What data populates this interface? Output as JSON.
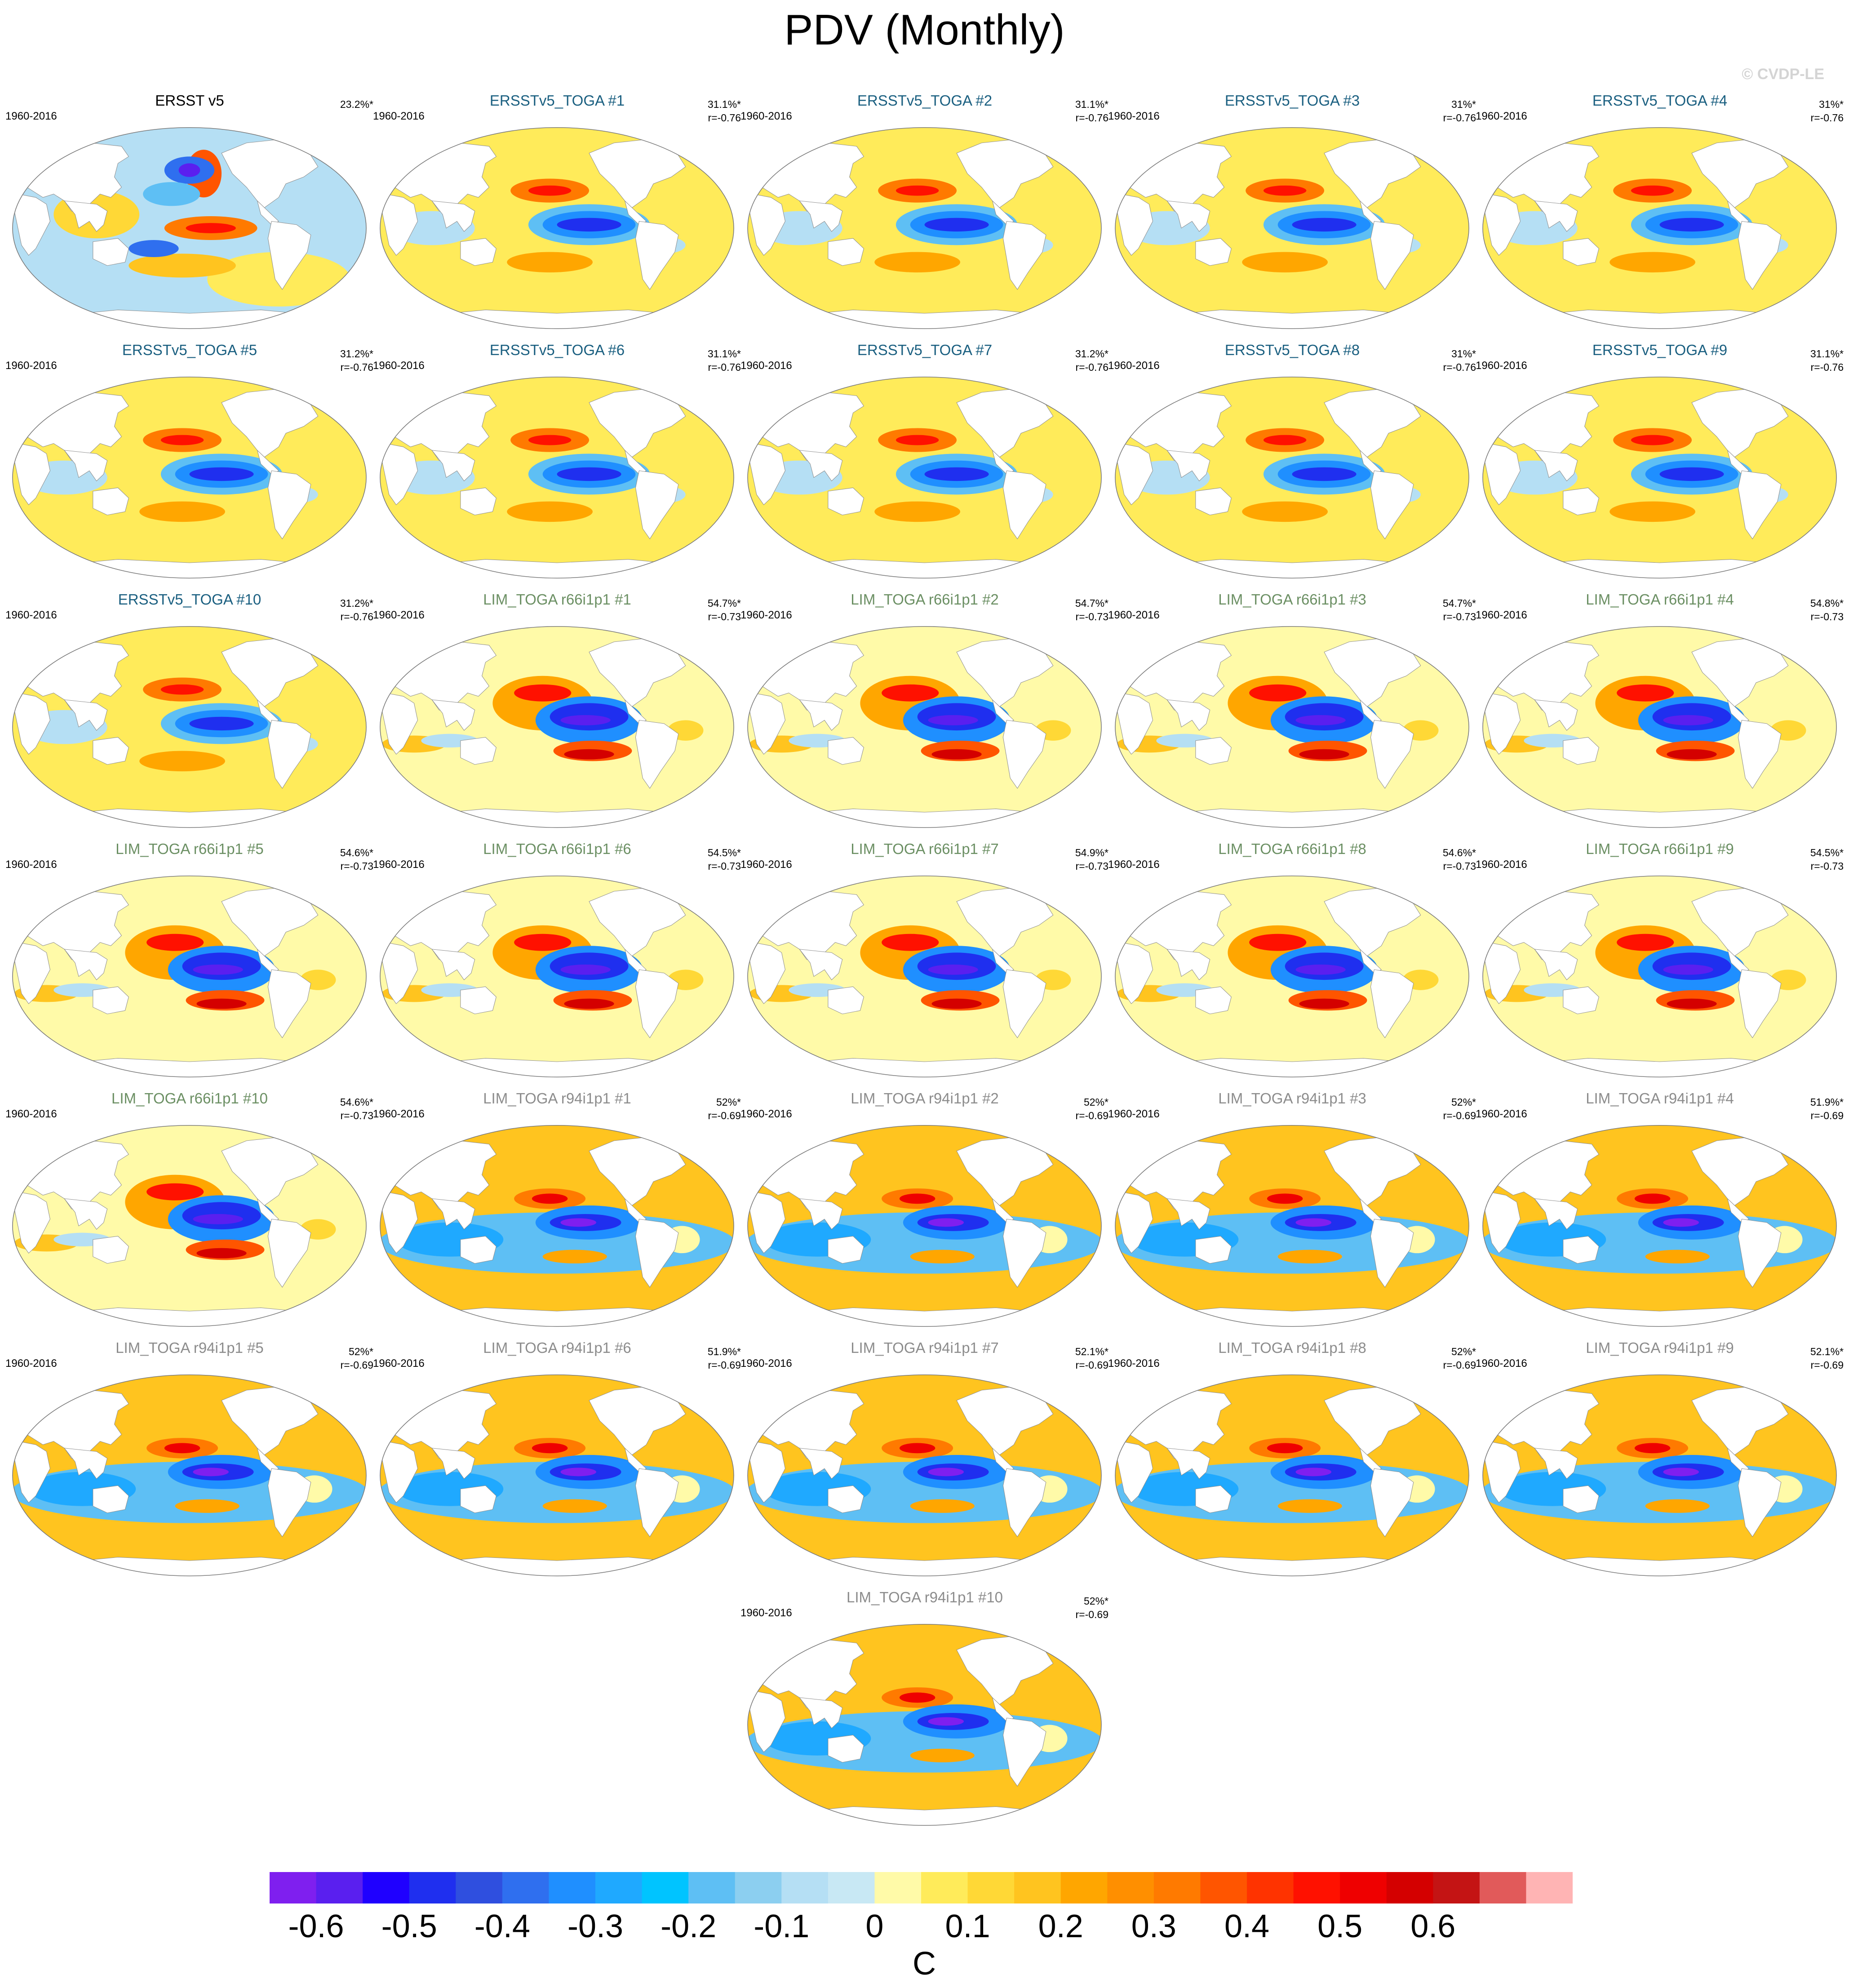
{
  "title": "PDV (Monthly)",
  "copyright": "© CVDP-LE",
  "units": "C",
  "panels": [
    {
      "title": "ERSST v5",
      "period": "1960-2016",
      "variance": "23.2%*",
      "corr": "",
      "style": "obs",
      "title_color": "#000000"
    },
    {
      "title": "ERSSTv5_TOGA #1",
      "period": "1960-2016",
      "variance": "31.1%*",
      "corr": "r=-0.76",
      "style": "ersst",
      "title_color": "#1a5f80"
    },
    {
      "title": "ERSSTv5_TOGA #2",
      "period": "1960-2016",
      "variance": "31.1%*",
      "corr": "r=-0.76",
      "style": "ersst",
      "title_color": "#1a5f80"
    },
    {
      "title": "ERSSTv5_TOGA #3",
      "period": "1960-2016",
      "variance": "31%*",
      "corr": "r=-0.76",
      "style": "ersst",
      "title_color": "#1a5f80"
    },
    {
      "title": "ERSSTv5_TOGA #4",
      "period": "1960-2016",
      "variance": "31%*",
      "corr": "r=-0.76",
      "style": "ersst",
      "title_color": "#1a5f80"
    },
    {
      "title": "ERSSTv5_TOGA #5",
      "period": "1960-2016",
      "variance": "31.2%*",
      "corr": "r=-0.76",
      "style": "ersst",
      "title_color": "#1a5f80"
    },
    {
      "title": "ERSSTv5_TOGA #6",
      "period": "1960-2016",
      "variance": "31.1%*",
      "corr": "r=-0.76",
      "style": "ersst",
      "title_color": "#1a5f80"
    },
    {
      "title": "ERSSTv5_TOGA #7",
      "period": "1960-2016",
      "variance": "31.2%*",
      "corr": "r=-0.76",
      "style": "ersst",
      "title_color": "#1a5f80"
    },
    {
      "title": "ERSSTv5_TOGA #8",
      "period": "1960-2016",
      "variance": "31%*",
      "corr": "r=-0.76",
      "style": "ersst",
      "title_color": "#1a5f80"
    },
    {
      "title": "ERSSTv5_TOGA #9",
      "period": "1960-2016",
      "variance": "31.1%*",
      "corr": "r=-0.76",
      "style": "ersst",
      "title_color": "#1a5f80"
    },
    {
      "title": "ERSSTv5_TOGA #10",
      "period": "1960-2016",
      "variance": "31.2%*",
      "corr": "r=-0.76",
      "style": "ersst",
      "title_color": "#1a5f80"
    },
    {
      "title": "LIM_TOGA r66i1p1 #1",
      "period": "1960-2016",
      "variance": "54.7%*",
      "corr": "r=-0.73",
      "style": "lim66",
      "title_color": "#6b8f63"
    },
    {
      "title": "LIM_TOGA r66i1p1 #2",
      "period": "1960-2016",
      "variance": "54.7%*",
      "corr": "r=-0.73",
      "style": "lim66",
      "title_color": "#6b8f63"
    },
    {
      "title": "LIM_TOGA r66i1p1 #3",
      "period": "1960-2016",
      "variance": "54.7%*",
      "corr": "r=-0.73",
      "style": "lim66",
      "title_color": "#6b8f63"
    },
    {
      "title": "LIM_TOGA r66i1p1 #4",
      "period": "1960-2016",
      "variance": "54.8%*",
      "corr": "r=-0.73",
      "style": "lim66",
      "title_color": "#6b8f63"
    },
    {
      "title": "LIM_TOGA r66i1p1 #5",
      "period": "1960-2016",
      "variance": "54.6%*",
      "corr": "r=-0.73",
      "style": "lim66",
      "title_color": "#6b8f63"
    },
    {
      "title": "LIM_TOGA r66i1p1 #6",
      "period": "1960-2016",
      "variance": "54.5%*",
      "corr": "r=-0.73",
      "style": "lim66",
      "title_color": "#6b8f63"
    },
    {
      "title": "LIM_TOGA r66i1p1 #7",
      "period": "1960-2016",
      "variance": "54.9%*",
      "corr": "r=-0.73",
      "style": "lim66",
      "title_color": "#6b8f63"
    },
    {
      "title": "LIM_TOGA r66i1p1 #8",
      "period": "1960-2016",
      "variance": "54.6%*",
      "corr": "r=-0.73",
      "style": "lim66",
      "title_color": "#6b8f63"
    },
    {
      "title": "LIM_TOGA r66i1p1 #9",
      "period": "1960-2016",
      "variance": "54.5%*",
      "corr": "r=-0.73",
      "style": "lim66",
      "title_color": "#6b8f63"
    },
    {
      "title": "LIM_TOGA r66i1p1 #10",
      "period": "1960-2016",
      "variance": "54.6%*",
      "corr": "r=-0.73",
      "style": "lim66",
      "title_color": "#6b8f63"
    },
    {
      "title": "LIM_TOGA r94i1p1 #1",
      "period": "1960-2016",
      "variance": "52%*",
      "corr": "r=-0.69",
      "style": "lim94",
      "title_color": "#8c8c8c"
    },
    {
      "title": "LIM_TOGA r94i1p1 #2",
      "period": "1960-2016",
      "variance": "52%*",
      "corr": "r=-0.69",
      "style": "lim94",
      "title_color": "#8c8c8c"
    },
    {
      "title": "LIM_TOGA r94i1p1 #3",
      "period": "1960-2016",
      "variance": "52%*",
      "corr": "r=-0.69",
      "style": "lim94",
      "title_color": "#8c8c8c"
    },
    {
      "title": "LIM_TOGA r94i1p1 #4",
      "period": "1960-2016",
      "variance": "51.9%*",
      "corr": "r=-0.69",
      "style": "lim94",
      "title_color": "#8c8c8c"
    },
    {
      "title": "LIM_TOGA r94i1p1 #5",
      "period": "1960-2016",
      "variance": "52%*",
      "corr": "r=-0.69",
      "style": "lim94",
      "title_color": "#8c8c8c"
    },
    {
      "title": "LIM_TOGA r94i1p1 #6",
      "period": "1960-2016",
      "variance": "51.9%*",
      "corr": "r=-0.69",
      "style": "lim94",
      "title_color": "#8c8c8c"
    },
    {
      "title": "LIM_TOGA r94i1p1 #7",
      "period": "1960-2016",
      "variance": "52.1%*",
      "corr": "r=-0.69",
      "style": "lim94",
      "title_color": "#8c8c8c"
    },
    {
      "title": "LIM_TOGA r94i1p1 #8",
      "period": "1960-2016",
      "variance": "52%*",
      "corr": "r=-0.69",
      "style": "lim94",
      "title_color": "#8c8c8c"
    },
    {
      "title": "LIM_TOGA r94i1p1 #9",
      "period": "1960-2016",
      "variance": "52.1%*",
      "corr": "r=-0.69",
      "style": "lim94",
      "title_color": "#8c8c8c"
    },
    {
      "title": "LIM_TOGA r94i1p1 #10",
      "period": "1960-2016",
      "variance": "52%*",
      "corr": "r=-0.69",
      "style": "lim94",
      "title_color": "#8c8c8c"
    }
  ],
  "colorbar": {
    "colors": [
      "#7f1fef",
      "#5a1fef",
      "#1f00ff",
      "#1f2fef",
      "#2f4fdf",
      "#2f6fef",
      "#1f8fff",
      "#1fa9ff",
      "#00c4ff",
      "#5ebff4",
      "#8ccff0",
      "#b5dff4",
      "#c8e8f4",
      "#fffaa8",
      "#ffeb5a",
      "#ffd836",
      "#ffc41f",
      "#ffa600",
      "#ff8f00",
      "#ff7a00",
      "#ff5500",
      "#ff3300",
      "#ff1100",
      "#ef0000",
      "#d40000",
      "#c41414",
      "#e15a5a",
      "#ffb4b4"
    ],
    "labels": [
      "-0.6",
      "-0.5",
      "-0.4",
      "-0.3",
      "-0.2",
      "-0.1",
      "0",
      "0.1",
      "0.2",
      "0.3",
      "0.4",
      "0.5",
      "0.6"
    ]
  }
}
